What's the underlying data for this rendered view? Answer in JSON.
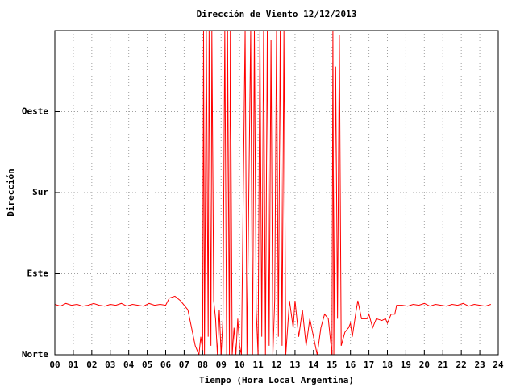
{
  "chart_data": {
    "type": "line",
    "title": "Dirección de Viento 12/12/2013",
    "x_label": "Tiempo (Hora Local Argentina)",
    "y_label": "Dirección",
    "xlim": [
      0,
      24
    ],
    "ylim": [
      0,
      360
    ],
    "xticks": [
      {
        "value": 0,
        "label": "00"
      },
      {
        "value": 1,
        "label": "01"
      },
      {
        "value": 2,
        "label": "02"
      },
      {
        "value": 3,
        "label": "03"
      },
      {
        "value": 4,
        "label": "04"
      },
      {
        "value": 5,
        "label": "05"
      },
      {
        "value": 6,
        "label": "06"
      },
      {
        "value": 7,
        "label": "07"
      },
      {
        "value": 8,
        "label": "08"
      },
      {
        "value": 9,
        "label": "09"
      },
      10,
      11,
      12,
      13,
      14,
      15,
      16,
      17,
      18,
      19,
      20,
      21,
      22,
      23,
      24
    ],
    "yticks": [
      {
        "value": 0,
        "label": "Norte"
      },
      {
        "value": 90,
        "label": "Este"
      },
      {
        "value": 180,
        "label": "Sur"
      },
      {
        "value": 270,
        "label": "Oeste"
      }
    ],
    "grid": true,
    "x": [
      0,
      0.3,
      0.6,
      0.9,
      1.2,
      1.5,
      1.8,
      2.1,
      2.4,
      2.7,
      3.0,
      3.3,
      3.6,
      3.9,
      4.2,
      4.5,
      4.8,
      5.1,
      5.4,
      5.7,
      6.0,
      6.2,
      6.5,
      6.8,
      7.0,
      7.2,
      7.4,
      7.6,
      7.8,
      7.9,
      8.0,
      8.05,
      8.1,
      8.2,
      8.3,
      8.35,
      8.45,
      8.5,
      8.6,
      8.7,
      8.8,
      8.9,
      9.0,
      9.1,
      9.2,
      9.3,
      9.35,
      9.45,
      9.5,
      9.6,
      9.7,
      9.8,
      9.9,
      10.0,
      10.1,
      10.3,
      10.4,
      10.6,
      10.7,
      10.8,
      10.9,
      11.0,
      11.1,
      11.2,
      11.3,
      11.4,
      11.5,
      11.6,
      11.7,
      11.8,
      11.9,
      12.0,
      12.1,
      12.2,
      12.3,
      12.4,
      12.5,
      12.7,
      12.9,
      13.0,
      13.2,
      13.4,
      13.6,
      13.8,
      14.0,
      14.2,
      14.4,
      14.6,
      14.8,
      15.0,
      15.05,
      15.1,
      15.2,
      15.3,
      15.4,
      15.5,
      15.7,
      15.9,
      16.0,
      16.1,
      16.3,
      16.4,
      16.6,
      16.9,
      17.0,
      17.2,
      17.4,
      17.7,
      17.9,
      18.0,
      18.2,
      18.4,
      18.5,
      18.8,
      19.1,
      19.4,
      19.7,
      20.0,
      20.3,
      20.6,
      20.9,
      21.2,
      21.5,
      21.8,
      22.1,
      22.4,
      22.7,
      23.0,
      23.3,
      23.6
    ],
    "series": [
      {
        "color": "#ff0000",
        "values": [
          56,
          54,
          57,
          55,
          56,
          54,
          55,
          57,
          55,
          54,
          56,
          55,
          57,
          54,
          56,
          55,
          54,
          57,
          55,
          56,
          55,
          63,
          65,
          60,
          55,
          50,
          30,
          10,
          0,
          20,
          5,
          360,
          0,
          360,
          20,
          360,
          10,
          360,
          60,
          40,
          0,
          50,
          0,
          40,
          360,
          0,
          360,
          0,
          360,
          0,
          30,
          0,
          40,
          10,
          0,
          360,
          0,
          360,
          0,
          360,
          50,
          0,
          360,
          20,
          360,
          0,
          360,
          10,
          350,
          0,
          60,
          360,
          20,
          360,
          10,
          360,
          0,
          60,
          30,
          60,
          20,
          50,
          10,
          40,
          20,
          0,
          30,
          45,
          40,
          0,
          360,
          0,
          320,
          40,
          355,
          10,
          25,
          30,
          35,
          20,
          48,
          60,
          40,
          40,
          45,
          30,
          40,
          38,
          40,
          35,
          45,
          45,
          55,
          55,
          54,
          56,
          55,
          57,
          54,
          56,
          55,
          54,
          56,
          55,
          57,
          54,
          56,
          55,
          54,
          56
        ]
      }
    ]
  }
}
